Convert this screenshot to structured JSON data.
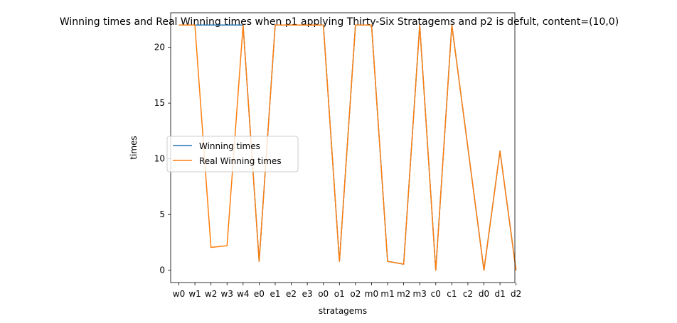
{
  "chart_data": {
    "type": "line",
    "title": "Winning times and Real Winning times when p1 applying Thirty-Six Stratagems and p2 is defult, content=(10,0)",
    "xlabel": "stratagems",
    "ylabel": "times",
    "categories": [
      "w0",
      "w1",
      "w2",
      "w3",
      "w4",
      "e0",
      "e1",
      "e2",
      "e3",
      "o0",
      "o1",
      "o2",
      "m0",
      "m1",
      "m2",
      "m3",
      "c0",
      "c1",
      "c2",
      "d0",
      "d1",
      "d2"
    ],
    "ylim": [
      -1.1,
      23.1
    ],
    "yticks": [
      0,
      5,
      10,
      15,
      20
    ],
    "grid": false,
    "legend_position": "center-left",
    "series": [
      {
        "name": "Winning times",
        "color": "#1f77b4",
        "values": [
          22,
          22,
          22,
          22,
          22,
          0.8,
          22,
          22,
          22,
          22,
          0.8,
          22,
          22,
          0.8,
          0.55,
          22,
          0,
          22,
          11,
          0,
          10.7,
          0
        ]
      },
      {
        "name": "Real Winning times",
        "color": "#ff7f0e",
        "values": [
          22,
          22,
          2.05,
          2.2,
          22,
          0.8,
          22,
          22,
          22,
          22,
          0.8,
          22,
          22,
          0.8,
          0.55,
          22,
          0,
          22,
          11,
          0,
          10.7,
          0
        ]
      }
    ]
  }
}
